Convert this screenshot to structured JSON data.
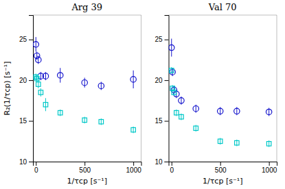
{
  "chart_data": [
    {
      "type": "scatter",
      "title": "Arg 39",
      "x_label": "1/τcp [s⁻¹]",
      "y_label": "R₂(1/τcp) [s⁻¹]",
      "xlim": [
        -30,
        1080
      ],
      "ylim": [
        10,
        28
      ],
      "xticks": [
        0,
        500,
        1000
      ],
      "yticks": [
        10,
        15,
        20,
        25
      ],
      "series": [
        {
          "color": "#1414CC",
          "marker": "circle",
          "x": [
            0,
            10,
            25,
            50,
            100,
            250,
            500,
            670,
            1000
          ],
          "values": [
            24.4,
            23.0,
            22.5,
            20.5,
            20.5,
            20.6,
            19.7,
            19.3,
            20.1
          ],
          "errors": [
            0.9,
            0.5,
            0.5,
            0.5,
            0.5,
            0.9,
            0.6,
            0.5,
            1.1
          ]
        },
        {
          "color": "#00C8C8",
          "marker": "square",
          "x": [
            0,
            10,
            25,
            50,
            100,
            250,
            500,
            670,
            1000
          ],
          "values": [
            20.4,
            20.2,
            19.5,
            18.5,
            17.0,
            16.0,
            15.1,
            14.9,
            13.9
          ],
          "errors": [
            0.4,
            0.4,
            0.5,
            0.5,
            0.8,
            0.4,
            0.4,
            0.4,
            0.4
          ]
        }
      ]
    },
    {
      "type": "scatter",
      "title": "Val 70",
      "x_label": "1/τcp [s⁻¹]",
      "xlim": [
        -30,
        1080
      ],
      "ylim": [
        10,
        28
      ],
      "xticks": [
        0,
        500,
        1000
      ],
      "yticks": [
        10,
        15,
        20,
        25
      ],
      "series": [
        {
          "color": "#1414CC",
          "marker": "circle",
          "x": [
            0,
            10,
            25,
            50,
            100,
            250,
            500,
            670,
            1000
          ],
          "values": [
            24.0,
            21.0,
            18.8,
            18.3,
            17.5,
            16.5,
            16.2,
            16.2,
            16.1
          ],
          "errors": [
            1.1,
            0.5,
            0.5,
            0.5,
            0.5,
            0.5,
            0.5,
            0.5,
            0.5
          ]
        },
        {
          "color": "#00C8C8",
          "marker": "square",
          "x": [
            0,
            10,
            25,
            50,
            100,
            250,
            500,
            670,
            1000
          ],
          "values": [
            21.2,
            19.0,
            18.5,
            16.0,
            15.5,
            14.1,
            12.5,
            12.3,
            12.2
          ],
          "errors": [
            0.4,
            0.4,
            0.4,
            0.4,
            0.4,
            0.4,
            0.4,
            0.4,
            0.4
          ]
        }
      ]
    }
  ]
}
